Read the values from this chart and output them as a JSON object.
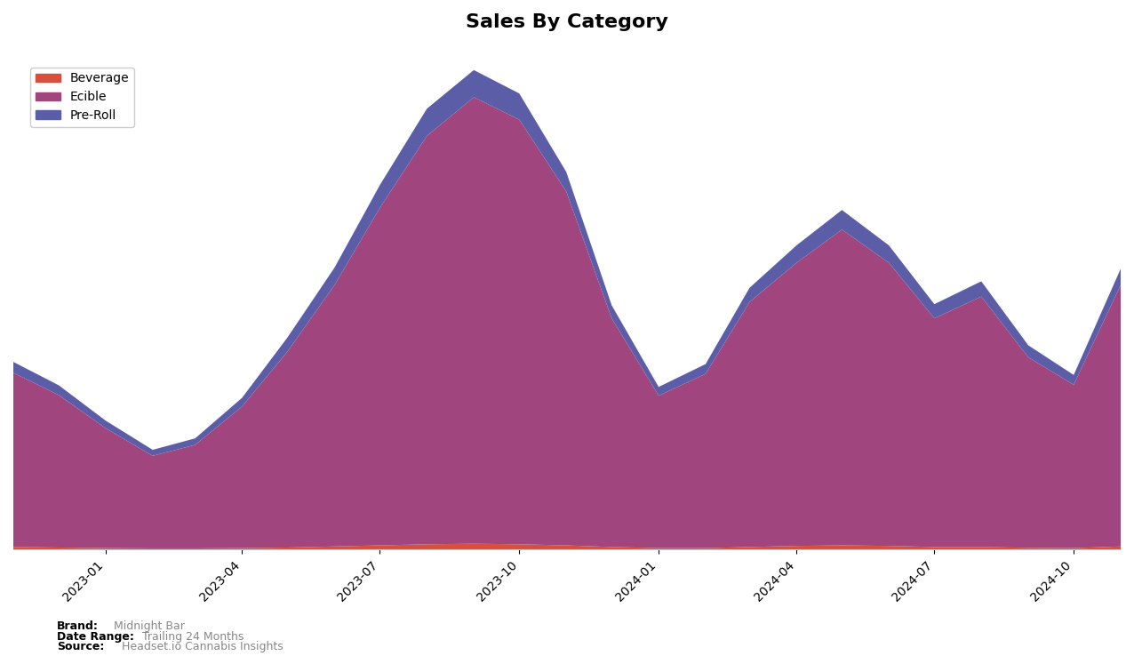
{
  "title": "Sales By Category",
  "categories": [
    "Beverage",
    "Ecible",
    "Pre-Roll"
  ],
  "colors": {
    "Beverage": "#d94f3d",
    "Ecible": "#a0457e",
    "Pre-Roll": "#5b5ea6"
  },
  "brand_label": "Midnight Bar",
  "date_range_label": "Trailing 24 Months",
  "source_label": "Headset.io Cannabis Insights",
  "background_color": "#ffffff",
  "x_tick_labels": [
    "2023-01",
    "2023-04",
    "2023-07",
    "2023-10",
    "2024-01",
    "2024-04",
    "2024-07",
    "2024-10"
  ],
  "time_points": 25,
  "edible_values": [
    3200,
    2800,
    2200,
    1700,
    1900,
    2600,
    3600,
    4800,
    6200,
    7500,
    8200,
    7800,
    6500,
    4200,
    2800,
    3200,
    4500,
    5200,
    5800,
    5200,
    4200,
    4600,
    3500,
    3000,
    4800
  ],
  "beverage_values": [
    50,
    40,
    30,
    25,
    25,
    30,
    40,
    60,
    80,
    100,
    110,
    100,
    80,
    50,
    30,
    30,
    50,
    70,
    80,
    70,
    50,
    50,
    35,
    30,
    60
  ],
  "preroll_values": [
    200,
    180,
    140,
    110,
    120,
    160,
    260,
    320,
    420,
    500,
    500,
    480,
    360,
    240,
    160,
    180,
    260,
    320,
    360,
    320,
    260,
    280,
    220,
    180,
    300
  ]
}
